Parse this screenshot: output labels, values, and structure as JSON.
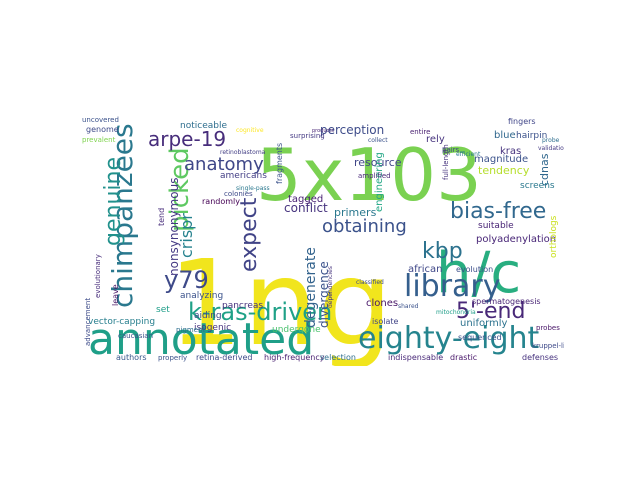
{
  "words": [
    {
      "text": "1ng",
      "color": "#f1e51d"
    },
    {
      "text": "5x103",
      "color": "#7ad151"
    },
    {
      "text": "annotated",
      "color": "#1f9f88"
    },
    {
      "text": "h/c",
      "color": "#28ae80"
    },
    {
      "text": "eighty-eight",
      "color": "#25848e"
    },
    {
      "text": "chimpanzees",
      "color": "#2a788e"
    },
    {
      "text": "library",
      "color": "#355f8d"
    },
    {
      "text": "picked",
      "color": "#5ec962"
    },
    {
      "text": "k-ras-driven",
      "color": "#1fa187"
    },
    {
      "text": "bias-free",
      "color": "#31688e"
    },
    {
      "text": "genuine",
      "color": "#21918c"
    },
    {
      "text": "y79",
      "color": "#3e4a89"
    },
    {
      "text": "5'-end",
      "color": "#482878"
    },
    {
      "text": "arpe-19",
      "color": "#472d7b"
    },
    {
      "text": "obtaining",
      "color": "#3b528b"
    },
    {
      "text": "kbp",
      "color": "#2c728e"
    },
    {
      "text": "expect",
      "color": "#414487"
    },
    {
      "text": "anatomy",
      "color": "#3f4788"
    },
    {
      "text": "crispr",
      "color": "#26828e"
    },
    {
      "text": "perception",
      "color": "#3e4c8a"
    },
    {
      "text": "nonsynonymous",
      "color": "#443983"
    },
    {
      "text": "conflict",
      "color": "#46337e"
    },
    {
      "text": "degenerate",
      "color": "#33638d"
    },
    {
      "text": "divergence",
      "color": "#3b528b"
    },
    {
      "text": "primers",
      "color": "#2a788e"
    },
    {
      "text": "tagged",
      "color": "#482173"
    },
    {
      "text": "resource",
      "color": "#404688"
    },
    {
      "text": "tendency",
      "color": "#b5de2b"
    },
    {
      "text": "magnitude",
      "color": "#3b528b"
    },
    {
      "text": "polyadenylation",
      "color": "#482677"
    },
    {
      "text": "cdnas",
      "color": "#31688e"
    },
    {
      "text": "screens",
      "color": "#2a788e"
    },
    {
      "text": "suitable",
      "color": "#482475"
    },
    {
      "text": "orthologs",
      "color": "#cae11f"
    },
    {
      "text": "african",
      "color": "#3f4788"
    },
    {
      "text": "clones",
      "color": "#481668"
    },
    {
      "text": "engineering",
      "color": "#22a785"
    },
    {
      "text": "evolution",
      "color": "#3c4f8a"
    },
    {
      "text": "spermatogenesis",
      "color": "#482475"
    },
    {
      "text": "uniformly",
      "color": "#2c728e"
    },
    {
      "text": "isolate",
      "color": "#414487"
    },
    {
      "text": "blue",
      "color": "#31688e"
    },
    {
      "text": "kras",
      "color": "#46337e"
    },
    {
      "text": "hairpin",
      "color": "#3b528b"
    },
    {
      "text": "fingers",
      "color": "#404688"
    },
    {
      "text": "rely",
      "color": "#46337e"
    },
    {
      "text": "noticeable",
      "color": "#2e6e8e"
    },
    {
      "text": "genome",
      "color": "#3e4a89"
    },
    {
      "text": "uncovered",
      "color": "#3b528b"
    },
    {
      "text": "prevalent",
      "color": "#7fd34e"
    },
    {
      "text": "americans",
      "color": "#433e85"
    },
    {
      "text": "randomly",
      "color": "#440154"
    },
    {
      "text": "pancreas",
      "color": "#46327e"
    },
    {
      "text": "analyzing",
      "color": "#3b528b"
    },
    {
      "text": "aiding",
      "color": "#3e4a89"
    },
    {
      "text": "tend",
      "color": "#472d7b"
    },
    {
      "text": "leave",
      "color": "#471365"
    },
    {
      "text": "set",
      "color": "#1f9e89"
    },
    {
      "text": "isogenic",
      "color": "#46337e"
    },
    {
      "text": "undergone",
      "color": "#4ac16d"
    },
    {
      "text": "vector-capping",
      "color": "#277f8e"
    },
    {
      "text": "pigment",
      "color": "#2e6e8e"
    },
    {
      "text": "caucasian",
      "color": "#3b528b"
    },
    {
      "text": "authors",
      "color": "#38588c"
    },
    {
      "text": "retina-derived",
      "color": "#3e4a89"
    },
    {
      "text": "high-frequency",
      "color": "#481f70"
    },
    {
      "text": "selection",
      "color": "#2e6e8e"
    },
    {
      "text": "indispensable",
      "color": "#482878"
    },
    {
      "text": "drastic",
      "color": "#481769"
    },
    {
      "text": "sequenced",
      "color": "#3b528b"
    },
    {
      "text": "defenses",
      "color": "#46327e"
    },
    {
      "text": "advancement",
      "color": "#3e4c8a"
    },
    {
      "text": "evolutionary",
      "color": "#472d7b"
    },
    {
      "text": "retinoblastoma",
      "color": "#433e85"
    },
    {
      "text": "amplified",
      "color": "#482878"
    },
    {
      "text": "collect",
      "color": "#3b528b"
    },
    {
      "text": "entire",
      "color": "#481f70"
    },
    {
      "text": "surprising",
      "color": "#443983"
    },
    {
      "text": "products",
      "color": "#482576"
    },
    {
      "text": "fragments",
      "color": "#3b528b"
    },
    {
      "text": "single-pass",
      "color": "#2a788e"
    },
    {
      "text": "colonies",
      "color": "#3e4a89"
    },
    {
      "text": "pairs",
      "color": "#404688"
    },
    {
      "text": "full-length",
      "color": "#46337e"
    },
    {
      "text": "mitochondria",
      "color": "#1f9e89"
    },
    {
      "text": "probes",
      "color": "#481668"
    },
    {
      "text": "kruppel-like",
      "color": "#3e4a89"
    },
    {
      "text": "cognitive",
      "color": "#fde725"
    },
    {
      "text": "probe",
      "color": "#2e6e8e"
    },
    {
      "text": "properly",
      "color": "#3b528b"
    },
    {
      "text": "validation",
      "color": "#443983"
    },
    {
      "text": "shared",
      "color": "#3b528b"
    },
    {
      "text": "efficient",
      "color": "#2a788e"
    },
    {
      "text": "classified",
      "color": "#3e4a89"
    },
    {
      "text": "dependencies",
      "color": "#46337e"
    }
  ]
}
